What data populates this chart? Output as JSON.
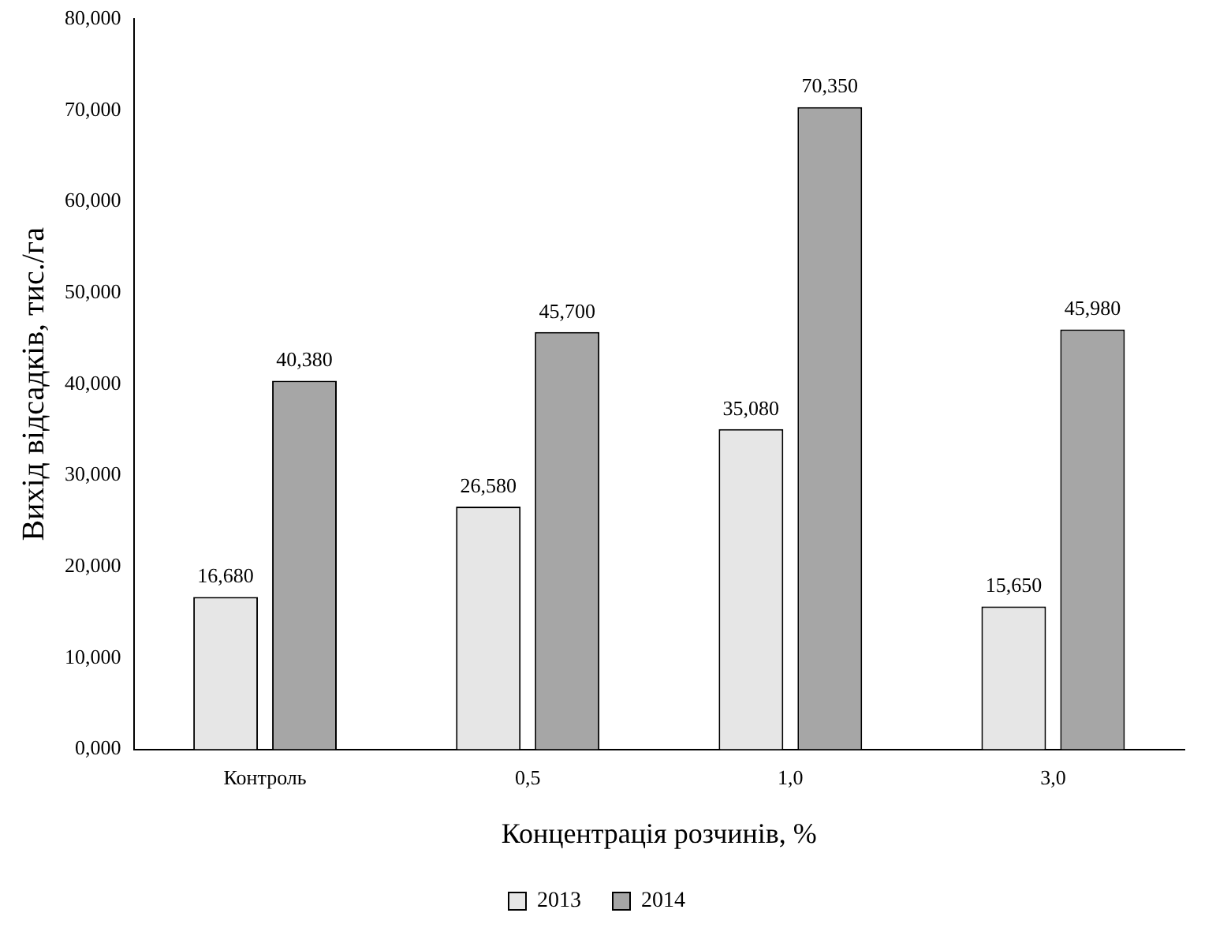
{
  "chart_data": {
    "type": "bar",
    "xlabel": "Концентрація розчинів, %",
    "ylabel": "Вихід відсадків, тис./га",
    "categories": [
      "Контроль",
      "0,5",
      "1,0",
      "3,0"
    ],
    "series": [
      {
        "name": "2013",
        "color": "#e6e6e6",
        "values": [
          16.68,
          26.58,
          35.08,
          15.65
        ],
        "value_labels": [
          "16,680",
          "26,580",
          "35,080",
          "15,650"
        ]
      },
      {
        "name": "2014",
        "color": "#a6a6a6",
        "values": [
          40.38,
          45.7,
          70.35,
          45.98
        ],
        "value_labels": [
          "40,380",
          "45,700",
          "70,350",
          "45,980"
        ]
      }
    ],
    "ylim": [
      0,
      80
    ],
    "yticks": [
      {
        "value": 0,
        "label": "0,000"
      },
      {
        "value": 10,
        "label": "10,000"
      },
      {
        "value": 20,
        "label": "20,000"
      },
      {
        "value": 30,
        "label": "30,000"
      },
      {
        "value": 40,
        "label": "40,000"
      },
      {
        "value": 50,
        "label": "50,000"
      },
      {
        "value": 60,
        "label": "60,000"
      },
      {
        "value": 70,
        "label": "70,000"
      },
      {
        "value": 80,
        "label": "80,000"
      }
    ],
    "legend": "bottom"
  }
}
